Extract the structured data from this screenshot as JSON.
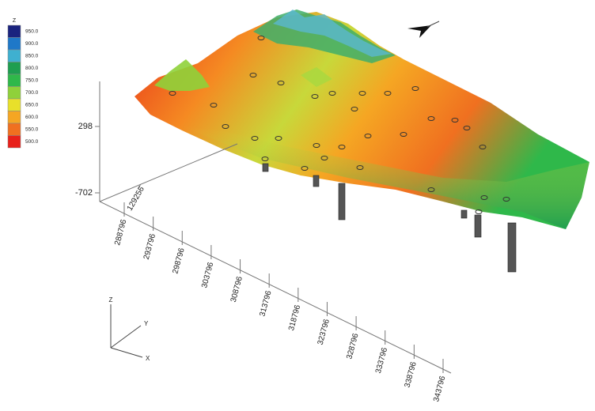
{
  "chart_data": {
    "type": "surface3d",
    "colorbar": {
      "title": "Z",
      "levels": [
        {
          "value": 950,
          "label": "950.0"
        },
        {
          "value": 900,
          "label": "900.0"
        },
        {
          "value": 850,
          "label": "850.0"
        },
        {
          "value": 800,
          "label": "800.0"
        },
        {
          "value": 750,
          "label": "750.0"
        },
        {
          "value": 700,
          "label": "700.0"
        },
        {
          "value": 650,
          "label": "650.0"
        },
        {
          "value": 600,
          "label": "600.0"
        },
        {
          "value": 550,
          "label": "550.0"
        },
        {
          "value": 500,
          "label": "500.0"
        }
      ],
      "colors": [
        "#1a237e",
        "#1f78c8",
        "#3fb0d0",
        "#1e9e50",
        "#2fb84a",
        "#8fd13a",
        "#e8e02a",
        "#f5a623",
        "#f07020",
        "#e8201a"
      ]
    },
    "xticks": [
      288796,
      293796,
      298796,
      303796,
      308796,
      313796,
      318796,
      323796,
      328796,
      333796,
      338796,
      343796
    ],
    "yticks": [
      129256
    ],
    "zticks": [
      298,
      -702
    ],
    "axis_labels": {
      "x": "X",
      "y": "Y",
      "z": "Z"
    }
  }
}
